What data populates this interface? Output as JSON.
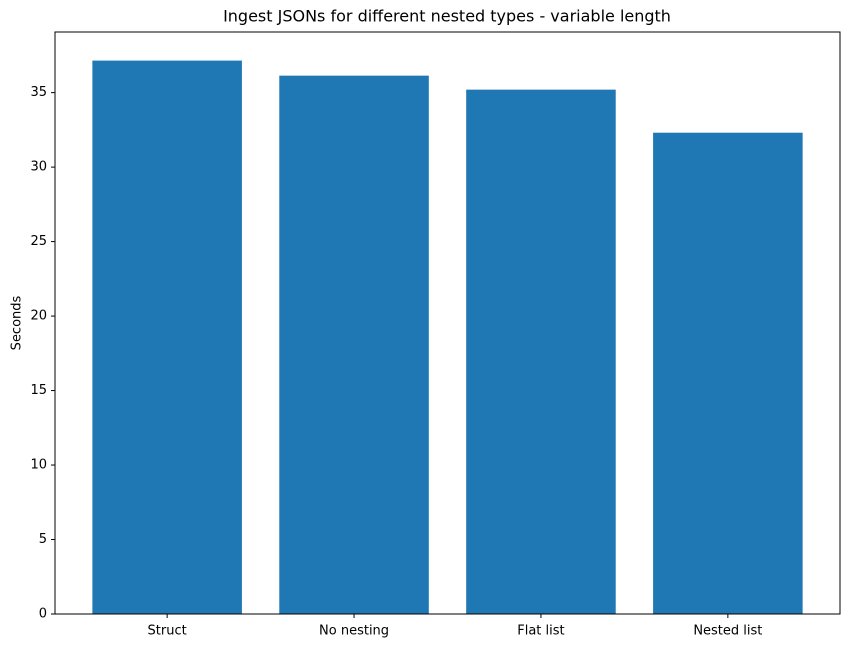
{
  "chart_data": {
    "type": "bar",
    "title": "Ingest JSONs for different nested types - variable length",
    "y_label": "Seconds",
    "categories": [
      "Struct",
      "No nesting",
      "Flat list",
      "Nested list"
    ],
    "values": [
      37.15,
      36.14,
      35.2,
      32.31
    ],
    "color": "#1f77b4",
    "ylim": [
      0,
      39.07
    ],
    "yticks": [
      0,
      5,
      10,
      15,
      20,
      25,
      30,
      35
    ]
  }
}
